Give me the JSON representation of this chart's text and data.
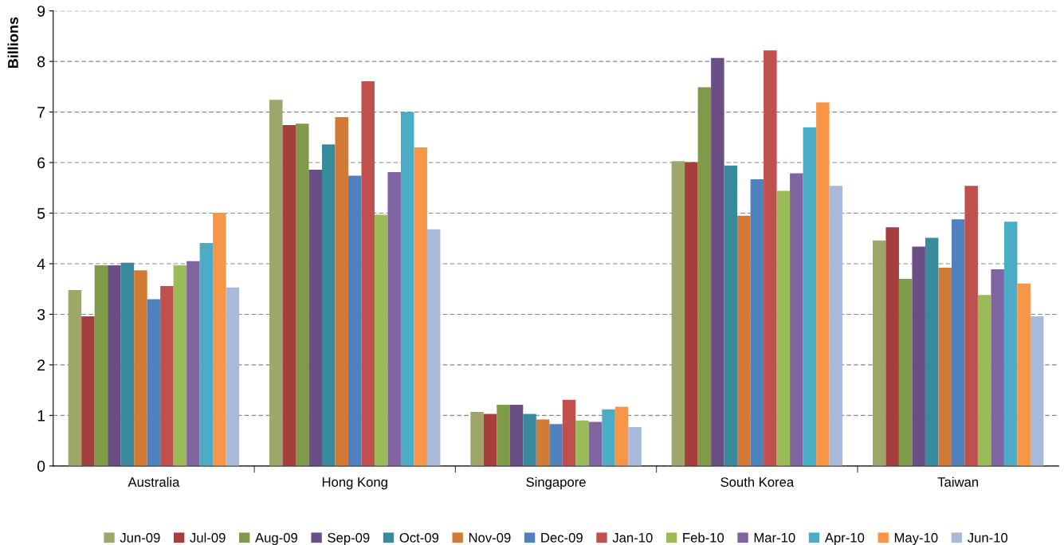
{
  "chart_data": {
    "type": "bar",
    "ylabel": "Billions",
    "categories": [
      "Australia",
      "Hong Kong",
      "Singapore",
      "South Korea",
      "Taiwan"
    ],
    "ylim": [
      0,
      9
    ],
    "yticks": [
      0,
      1,
      2,
      3,
      4,
      5,
      6,
      7,
      8,
      9
    ],
    "grid": "y",
    "legend": "bottom",
    "series": [
      {
        "name": "Jun-09",
        "color": "#9fa66a",
        "values": [
          3.48,
          7.24,
          1.07,
          6.03,
          4.46
        ]
      },
      {
        "name": "Jul-09",
        "color": "#a43f3b",
        "values": [
          2.96,
          6.74,
          1.03,
          6.01,
          4.72
        ]
      },
      {
        "name": "Aug-09",
        "color": "#7f9a48",
        "values": [
          3.97,
          6.77,
          1.21,
          7.49,
          3.7
        ]
      },
      {
        "name": "Sep-09",
        "color": "#6a4e86",
        "values": [
          3.97,
          5.86,
          1.21,
          8.07,
          4.34
        ]
      },
      {
        "name": "Oct-09",
        "color": "#3a8a9e",
        "values": [
          4.02,
          6.36,
          1.03,
          5.94,
          4.51
        ]
      },
      {
        "name": "Nov-09",
        "color": "#d17a35",
        "values": [
          3.87,
          6.9,
          0.92,
          4.95,
          3.92
        ]
      },
      {
        "name": "Dec-09",
        "color": "#4f81bd",
        "values": [
          3.3,
          5.74,
          0.83,
          5.67,
          4.88
        ]
      },
      {
        "name": "Jan-10",
        "color": "#c0504d",
        "values": [
          3.56,
          7.61,
          1.31,
          8.22,
          5.54
        ]
      },
      {
        "name": "Feb-10",
        "color": "#9bbb59",
        "values": [
          3.97,
          4.97,
          0.9,
          5.44,
          3.38
        ]
      },
      {
        "name": "Mar-10",
        "color": "#8064a2",
        "values": [
          4.05,
          5.81,
          0.87,
          5.79,
          3.89
        ]
      },
      {
        "name": "Apr-10",
        "color": "#4bacc6",
        "values": [
          4.41,
          7.0,
          1.12,
          6.7,
          4.83
        ]
      },
      {
        "name": "May-10",
        "color": "#f79646",
        "values": [
          5.01,
          6.3,
          1.17,
          7.19,
          3.61
        ]
      },
      {
        "name": "Jun-10",
        "color": "#a9b9d9",
        "values": [
          3.53,
          4.68,
          0.77,
          5.54,
          2.96
        ]
      }
    ]
  }
}
